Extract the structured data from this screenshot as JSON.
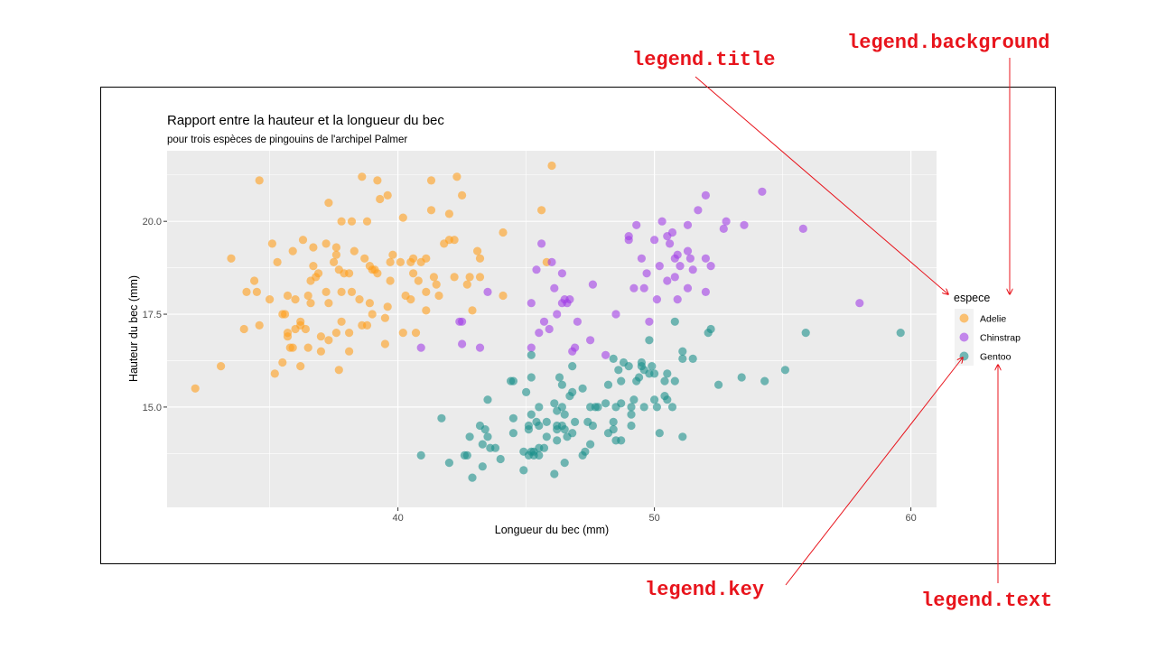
{
  "colors": {
    "adelie": "#ff9f1c",
    "chinstrap": "#a23ee6",
    "gentoo": "#1b8f8a",
    "panel": "#ebebeb",
    "grid": "#ffffff",
    "annotation": "#e8141c"
  },
  "annotations": {
    "legend_title": "legend.title",
    "legend_background": "legend.background",
    "legend_key": "legend.key",
    "legend_text": "legend.text"
  },
  "chart_data": {
    "type": "scatter",
    "title": "Rapport entre la hauteur et la longueur du bec",
    "subtitle": "pour trois espèces de pingouins de l'archipel Palmer",
    "xlabel": "Longueur du bec (mm)",
    "ylabel": "Hauteur du bec (mm)",
    "xlim": [
      31,
      61
    ],
    "ylim": [
      12.3,
      21.9
    ],
    "x_ticks": [
      40,
      50,
      60
    ],
    "x_tick_labels": [
      "40",
      "50",
      "60"
    ],
    "y_ticks": [
      15.0,
      17.5,
      20.0
    ],
    "y_tick_labels": [
      "15.0",
      "17.5",
      "20.0"
    ],
    "grid": true,
    "legend": {
      "title": "espece",
      "position": "right"
    },
    "series": [
      {
        "name": "Adelie",
        "points": [
          [
            32.1,
            15.5
          ],
          [
            33.1,
            16.1
          ],
          [
            33.5,
            19.0
          ],
          [
            34.0,
            17.1
          ],
          [
            34.1,
            18.1
          ],
          [
            34.4,
            18.4
          ],
          [
            34.5,
            18.1
          ],
          [
            34.6,
            21.1
          ],
          [
            34.6,
            17.2
          ],
          [
            35.0,
            17.9
          ],
          [
            35.1,
            19.4
          ],
          [
            35.2,
            15.9
          ],
          [
            35.3,
            18.9
          ],
          [
            35.5,
            17.5
          ],
          [
            35.5,
            16.2
          ],
          [
            35.6,
            17.5
          ],
          [
            35.7,
            18.0
          ],
          [
            35.7,
            17.0
          ],
          [
            35.7,
            16.9
          ],
          [
            35.8,
            16.6
          ],
          [
            35.9,
            19.2
          ],
          [
            35.9,
            16.6
          ],
          [
            36.0,
            17.9
          ],
          [
            36.0,
            17.1
          ],
          [
            36.2,
            16.1
          ],
          [
            36.2,
            17.3
          ],
          [
            36.2,
            17.2
          ],
          [
            36.3,
            19.5
          ],
          [
            36.4,
            17.1
          ],
          [
            36.5,
            18.0
          ],
          [
            36.5,
            16.6
          ],
          [
            36.6,
            17.8
          ],
          [
            36.6,
            18.4
          ],
          [
            36.7,
            19.3
          ],
          [
            36.7,
            18.8
          ],
          [
            36.8,
            18.5
          ],
          [
            36.9,
            18.6
          ],
          [
            37.0,
            16.9
          ],
          [
            37.0,
            16.5
          ],
          [
            37.2,
            18.1
          ],
          [
            37.2,
            19.4
          ],
          [
            37.3,
            20.5
          ],
          [
            37.3,
            17.8
          ],
          [
            37.3,
            16.8
          ],
          [
            37.5,
            18.9
          ],
          [
            37.6,
            19.1
          ],
          [
            37.6,
            17.0
          ],
          [
            37.6,
            19.3
          ],
          [
            37.7,
            18.7
          ],
          [
            37.7,
            16.0
          ],
          [
            37.8,
            17.3
          ],
          [
            37.8,
            18.1
          ],
          [
            37.8,
            20.0
          ],
          [
            37.9,
            18.6
          ],
          [
            38.1,
            18.6
          ],
          [
            38.1,
            17.0
          ],
          [
            38.1,
            16.5
          ],
          [
            38.2,
            18.1
          ],
          [
            38.2,
            20.0
          ],
          [
            38.3,
            19.2
          ],
          [
            38.5,
            17.9
          ],
          [
            38.6,
            21.2
          ],
          [
            38.6,
            17.2
          ],
          [
            38.7,
            19.0
          ],
          [
            38.8,
            17.2
          ],
          [
            38.8,
            20.0
          ],
          [
            38.9,
            17.8
          ],
          [
            38.9,
            18.8
          ],
          [
            39.0,
            18.7
          ],
          [
            39.0,
            17.5
          ],
          [
            39.1,
            18.7
          ],
          [
            39.2,
            21.1
          ],
          [
            39.2,
            18.6
          ],
          [
            39.3,
            20.6
          ],
          [
            39.5,
            17.4
          ],
          [
            39.5,
            16.7
          ],
          [
            39.6,
            17.7
          ],
          [
            39.6,
            20.7
          ],
          [
            39.7,
            18.4
          ],
          [
            39.7,
            18.9
          ],
          [
            39.8,
            19.1
          ],
          [
            40.1,
            18.9
          ],
          [
            40.2,
            17.0
          ],
          [
            40.2,
            20.1
          ],
          [
            40.3,
            18.0
          ],
          [
            40.5,
            17.9
          ],
          [
            40.5,
            18.9
          ],
          [
            40.6,
            18.6
          ],
          [
            40.6,
            19.0
          ],
          [
            40.7,
            17.0
          ],
          [
            40.8,
            18.4
          ],
          [
            40.9,
            18.9
          ],
          [
            41.1,
            17.6
          ],
          [
            41.1,
            18.1
          ],
          [
            41.1,
            19.0
          ],
          [
            41.3,
            21.1
          ],
          [
            41.3,
            20.3
          ],
          [
            41.4,
            18.5
          ],
          [
            41.5,
            18.3
          ],
          [
            41.6,
            18.0
          ],
          [
            41.8,
            19.4
          ],
          [
            42.0,
            19.5
          ],
          [
            42.0,
            20.2
          ],
          [
            42.2,
            18.5
          ],
          [
            42.2,
            19.5
          ],
          [
            42.3,
            21.2
          ],
          [
            42.5,
            20.7
          ],
          [
            42.7,
            18.3
          ],
          [
            42.8,
            18.5
          ],
          [
            42.9,
            17.6
          ],
          [
            43.1,
            19.2
          ],
          [
            43.2,
            19.0
          ],
          [
            43.2,
            18.5
          ],
          [
            44.1,
            19.7
          ],
          [
            44.1,
            18.0
          ],
          [
            45.6,
            20.3
          ],
          [
            45.8,
            18.9
          ],
          [
            46.0,
            21.5
          ]
        ]
      },
      {
        "name": "Chinstrap",
        "points": [
          [
            40.9,
            16.6
          ],
          [
            42.4,
            17.3
          ],
          [
            42.5,
            16.7
          ],
          [
            42.5,
            17.3
          ],
          [
            43.2,
            16.6
          ],
          [
            43.5,
            18.1
          ],
          [
            45.2,
            17.8
          ],
          [
            45.2,
            16.6
          ],
          [
            45.4,
            18.7
          ],
          [
            45.5,
            17.0
          ],
          [
            45.6,
            19.4
          ],
          [
            45.7,
            17.3
          ],
          [
            45.9,
            17.1
          ],
          [
            46.0,
            18.9
          ],
          [
            46.1,
            18.2
          ],
          [
            46.2,
            17.5
          ],
          [
            46.4,
            17.8
          ],
          [
            46.4,
            18.6
          ],
          [
            46.5,
            17.9
          ],
          [
            46.6,
            17.8
          ],
          [
            46.7,
            17.9
          ],
          [
            46.8,
            16.5
          ],
          [
            46.9,
            16.6
          ],
          [
            47.0,
            17.3
          ],
          [
            47.5,
            16.8
          ],
          [
            47.6,
            18.3
          ],
          [
            48.1,
            16.4
          ],
          [
            48.5,
            17.5
          ],
          [
            49.0,
            19.5
          ],
          [
            49.0,
            19.6
          ],
          [
            49.2,
            18.2
          ],
          [
            49.3,
            19.9
          ],
          [
            49.5,
            19.0
          ],
          [
            49.6,
            18.2
          ],
          [
            49.7,
            18.6
          ],
          [
            49.8,
            17.3
          ],
          [
            50.0,
            19.5
          ],
          [
            50.1,
            17.9
          ],
          [
            50.2,
            18.8
          ],
          [
            50.3,
            20.0
          ],
          [
            50.5,
            18.4
          ],
          [
            50.5,
            19.6
          ],
          [
            50.6,
            19.4
          ],
          [
            50.7,
            19.7
          ],
          [
            50.8,
            18.5
          ],
          [
            50.8,
            19.0
          ],
          [
            50.9,
            17.9
          ],
          [
            50.9,
            19.1
          ],
          [
            51.0,
            18.8
          ],
          [
            51.3,
            18.2
          ],
          [
            51.3,
            19.2
          ],
          [
            51.3,
            19.9
          ],
          [
            51.4,
            19.0
          ],
          [
            51.5,
            18.7
          ],
          [
            51.7,
            20.3
          ],
          [
            52.0,
            18.1
          ],
          [
            52.0,
            19.0
          ],
          [
            52.0,
            20.7
          ],
          [
            52.2,
            18.8
          ],
          [
            52.7,
            19.8
          ],
          [
            52.8,
            20.0
          ],
          [
            53.5,
            19.9
          ],
          [
            54.2,
            20.8
          ],
          [
            55.8,
            19.8
          ],
          [
            58.0,
            17.8
          ]
        ]
      },
      {
        "name": "Gentoo",
        "points": [
          [
            40.9,
            13.7
          ],
          [
            41.7,
            14.7
          ],
          [
            42.0,
            13.5
          ],
          [
            42.6,
            13.7
          ],
          [
            42.7,
            13.7
          ],
          [
            42.8,
            14.2
          ],
          [
            42.9,
            13.1
          ],
          [
            43.2,
            14.5
          ],
          [
            43.3,
            13.4
          ],
          [
            43.3,
            14.0
          ],
          [
            43.4,
            14.4
          ],
          [
            43.5,
            14.2
          ],
          [
            43.5,
            15.2
          ],
          [
            43.6,
            13.9
          ],
          [
            43.8,
            13.9
          ],
          [
            44.0,
            13.6
          ],
          [
            44.4,
            15.7
          ],
          [
            44.5,
            14.3
          ],
          [
            44.5,
            14.7
          ],
          [
            44.5,
            15.7
          ],
          [
            44.9,
            13.3
          ],
          [
            44.9,
            13.8
          ],
          [
            45.0,
            15.4
          ],
          [
            45.1,
            14.4
          ],
          [
            45.1,
            14.5
          ],
          [
            45.1,
            13.7
          ],
          [
            45.2,
            13.8
          ],
          [
            45.2,
            14.8
          ],
          [
            45.2,
            15.8
          ],
          [
            45.2,
            16.4
          ],
          [
            45.3,
            13.7
          ],
          [
            45.3,
            13.8
          ],
          [
            45.4,
            14.6
          ],
          [
            45.5,
            13.7
          ],
          [
            45.5,
            13.9
          ],
          [
            45.5,
            14.5
          ],
          [
            45.5,
            15.0
          ],
          [
            45.7,
            13.9
          ],
          [
            45.8,
            14.2
          ],
          [
            45.8,
            14.6
          ],
          [
            46.1,
            13.2
          ],
          [
            46.1,
            15.1
          ],
          [
            46.2,
            14.1
          ],
          [
            46.2,
            14.4
          ],
          [
            46.2,
            14.5
          ],
          [
            46.2,
            14.9
          ],
          [
            46.3,
            15.8
          ],
          [
            46.4,
            14.5
          ],
          [
            46.4,
            15.0
          ],
          [
            46.4,
            15.6
          ],
          [
            46.5,
            13.5
          ],
          [
            46.5,
            14.4
          ],
          [
            46.5,
            14.8
          ],
          [
            46.6,
            14.2
          ],
          [
            46.7,
            15.3
          ],
          [
            46.8,
            14.3
          ],
          [
            46.8,
            15.4
          ],
          [
            46.8,
            16.1
          ],
          [
            46.9,
            14.6
          ],
          [
            47.2,
            13.7
          ],
          [
            47.2,
            15.5
          ],
          [
            47.3,
            13.8
          ],
          [
            47.4,
            14.6
          ],
          [
            47.5,
            14.0
          ],
          [
            47.5,
            15.0
          ],
          [
            47.6,
            14.5
          ],
          [
            47.7,
            15.0
          ],
          [
            47.8,
            15.0
          ],
          [
            48.1,
            15.1
          ],
          [
            48.2,
            14.3
          ],
          [
            48.2,
            15.6
          ],
          [
            48.4,
            14.4
          ],
          [
            48.4,
            14.6
          ],
          [
            48.4,
            16.3
          ],
          [
            48.5,
            14.1
          ],
          [
            48.5,
            15.0
          ],
          [
            48.6,
            16.0
          ],
          [
            48.7,
            14.1
          ],
          [
            48.7,
            15.1
          ],
          [
            48.7,
            15.7
          ],
          [
            48.8,
            16.2
          ],
          [
            49.0,
            16.1
          ],
          [
            49.1,
            14.5
          ],
          [
            49.1,
            14.8
          ],
          [
            49.1,
            15.0
          ],
          [
            49.2,
            15.2
          ],
          [
            49.3,
            15.7
          ],
          [
            49.4,
            15.8
          ],
          [
            49.5,
            16.1
          ],
          [
            49.5,
            16.2
          ],
          [
            49.6,
            15.0
          ],
          [
            49.6,
            16.0
          ],
          [
            49.8,
            15.9
          ],
          [
            49.8,
            16.8
          ],
          [
            49.9,
            16.1
          ],
          [
            50.0,
            15.2
          ],
          [
            50.0,
            15.9
          ],
          [
            50.1,
            15.0
          ],
          [
            50.2,
            14.3
          ],
          [
            50.4,
            15.3
          ],
          [
            50.4,
            15.7
          ],
          [
            50.5,
            15.2
          ],
          [
            50.5,
            15.9
          ],
          [
            50.7,
            15.0
          ],
          [
            50.8,
            15.7
          ],
          [
            50.8,
            17.3
          ],
          [
            51.1,
            14.2
          ],
          [
            51.1,
            16.3
          ],
          [
            51.1,
            16.5
          ],
          [
            51.5,
            16.3
          ],
          [
            52.1,
            17.0
          ],
          [
            52.2,
            17.1
          ],
          [
            52.5,
            15.6
          ],
          [
            53.4,
            15.8
          ],
          [
            54.3,
            15.7
          ],
          [
            55.1,
            16.0
          ],
          [
            55.9,
            17.0
          ],
          [
            59.6,
            17.0
          ]
        ]
      }
    ]
  }
}
